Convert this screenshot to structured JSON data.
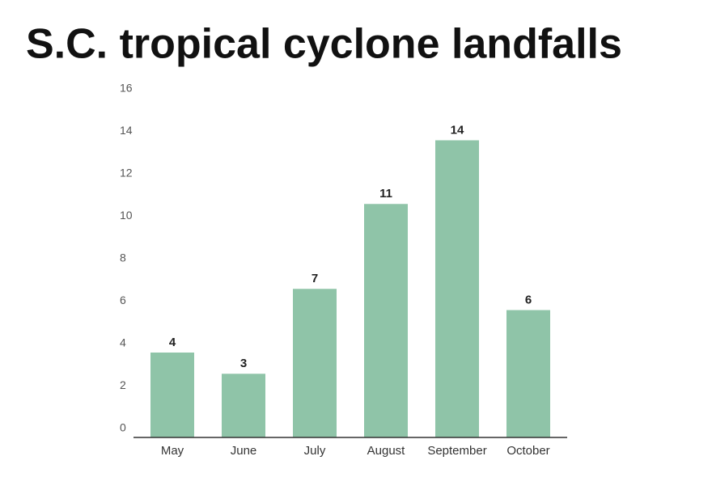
{
  "chart_data": {
    "type": "bar",
    "title": "S.C. tropical cyclone landfalls",
    "categories": [
      "May",
      "June",
      "July",
      "August",
      "September",
      "October"
    ],
    "values": [
      4,
      3,
      7,
      11,
      14,
      6
    ],
    "color": "#8fc4a8",
    "ylim": [
      0,
      16
    ],
    "yticks": [
      0,
      2,
      4,
      6,
      8,
      10,
      12,
      14,
      16
    ],
    "grid": false
  }
}
